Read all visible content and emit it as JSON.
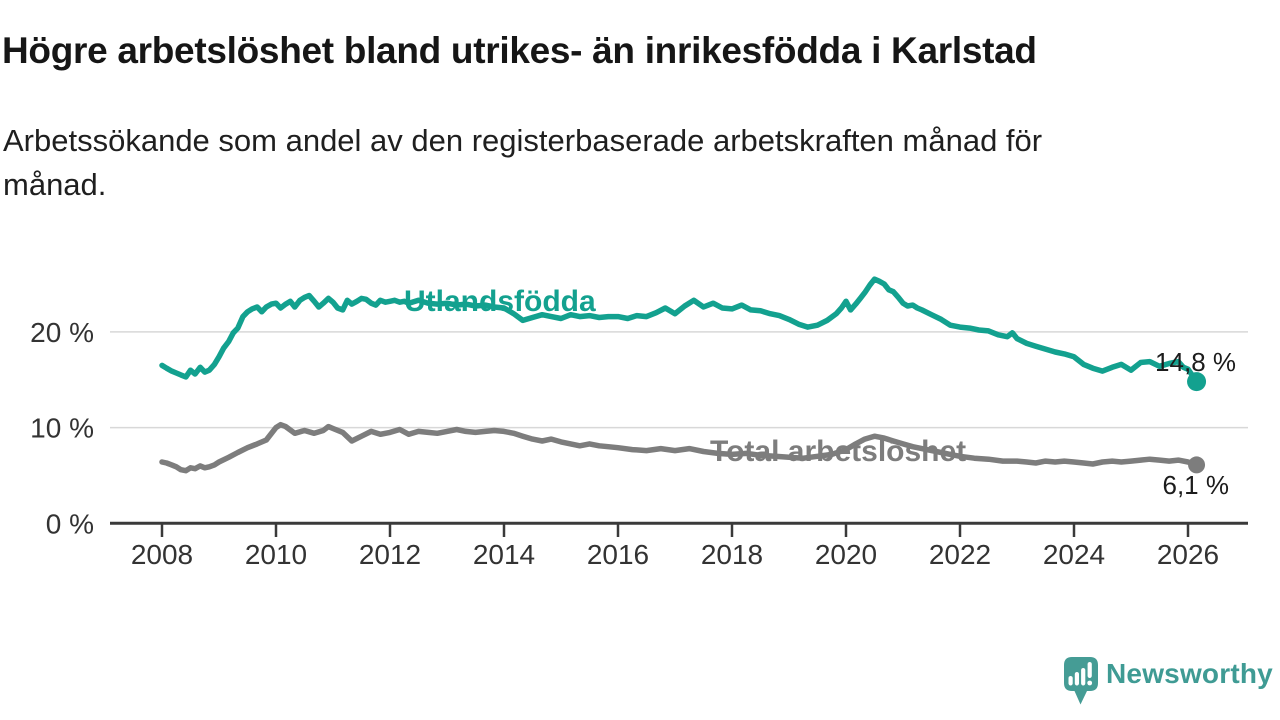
{
  "header": {
    "title": "Högre arbetslöshet bland utrikes- än inrikesfödda i Karlstad",
    "subtitle": "Arbetssökande som andel av den registerbaserade arbetskraften månad för månad."
  },
  "footer": {
    "brand": "Newsworthy"
  },
  "colors": {
    "foreign_born_line": "#13a18f",
    "total_line": "#7d7d7d",
    "axis": "#3a3a3a",
    "gridline": "#d8d8d8",
    "text_dark": "#1c1c1c",
    "brand_teal": "#3f9b94"
  },
  "chart_data": {
    "type": "line",
    "title": "Högre arbetslöshet bland utrikes- än inrikesfödda i Karlstad",
    "xlabel": "",
    "ylabel": "",
    "xlim": [
      2007.1,
      2027.1
    ],
    "ylim": [
      0,
      27
    ],
    "grid": "horizontal",
    "legend_position": "inline-labels",
    "x_axis": {
      "ticks": [
        2008,
        2010,
        2012,
        2014,
        2016,
        2018,
        2020,
        2022,
        2024,
        2026
      ]
    },
    "y_axis": {
      "ticks": [
        {
          "value": 0,
          "label": "0 %"
        },
        {
          "value": 10,
          "label": "10 %"
        },
        {
          "value": 20,
          "label": "20 %"
        }
      ]
    },
    "series": [
      {
        "id": "utlandsfodda",
        "label": "Utlandsfödda",
        "color": "#13a18f",
        "end_value": 14.8,
        "end_label": "14,8 %",
        "points": [
          [
            2008.0,
            16.5
          ],
          [
            2008.08,
            16.2
          ],
          [
            2008.17,
            15.9
          ],
          [
            2008.25,
            15.7
          ],
          [
            2008.33,
            15.5
          ],
          [
            2008.42,
            15.3
          ],
          [
            2008.5,
            16.0
          ],
          [
            2008.58,
            15.6
          ],
          [
            2008.67,
            16.3
          ],
          [
            2008.75,
            15.8
          ],
          [
            2008.83,
            16.0
          ],
          [
            2008.92,
            16.6
          ],
          [
            2009.0,
            17.4
          ],
          [
            2009.08,
            18.3
          ],
          [
            2009.17,
            19.0
          ],
          [
            2009.25,
            19.9
          ],
          [
            2009.33,
            20.4
          ],
          [
            2009.42,
            21.6
          ],
          [
            2009.5,
            22.1
          ],
          [
            2009.58,
            22.4
          ],
          [
            2009.67,
            22.6
          ],
          [
            2009.75,
            22.1
          ],
          [
            2009.83,
            22.6
          ],
          [
            2009.92,
            22.9
          ],
          [
            2010.0,
            23.0
          ],
          [
            2010.08,
            22.5
          ],
          [
            2010.17,
            22.9
          ],
          [
            2010.25,
            23.2
          ],
          [
            2010.33,
            22.6
          ],
          [
            2010.42,
            23.3
          ],
          [
            2010.5,
            23.6
          ],
          [
            2010.58,
            23.8
          ],
          [
            2010.67,
            23.2
          ],
          [
            2010.75,
            22.6
          ],
          [
            2010.83,
            23.0
          ],
          [
            2010.92,
            23.5
          ],
          [
            2011.0,
            23.1
          ],
          [
            2011.08,
            22.5
          ],
          [
            2011.17,
            22.3
          ],
          [
            2011.25,
            23.3
          ],
          [
            2011.33,
            22.9
          ],
          [
            2011.42,
            23.2
          ],
          [
            2011.5,
            23.5
          ],
          [
            2011.58,
            23.4
          ],
          [
            2011.67,
            23.0
          ],
          [
            2011.75,
            22.8
          ],
          [
            2011.83,
            23.3
          ],
          [
            2011.92,
            23.1
          ],
          [
            2012.0,
            23.2
          ],
          [
            2012.08,
            23.3
          ],
          [
            2012.17,
            23.1
          ],
          [
            2012.25,
            23.2
          ],
          [
            2012.33,
            23.0
          ],
          [
            2012.5,
            23.3
          ],
          [
            2012.67,
            23.0
          ],
          [
            2012.83,
            22.9
          ],
          [
            2013.0,
            23.0
          ],
          [
            2013.17,
            22.8
          ],
          [
            2013.33,
            22.9
          ],
          [
            2013.5,
            22.7
          ],
          [
            2013.67,
            22.8
          ],
          [
            2013.83,
            22.6
          ],
          [
            2014.0,
            22.5
          ],
          [
            2014.17,
            21.9
          ],
          [
            2014.33,
            21.2
          ],
          [
            2014.5,
            21.5
          ],
          [
            2014.67,
            21.8
          ],
          [
            2014.83,
            21.6
          ],
          [
            2015.0,
            21.4
          ],
          [
            2015.17,
            21.8
          ],
          [
            2015.33,
            21.6
          ],
          [
            2015.5,
            21.7
          ],
          [
            2015.67,
            21.5
          ],
          [
            2015.83,
            21.6
          ],
          [
            2016.0,
            21.6
          ],
          [
            2016.17,
            21.4
          ],
          [
            2016.33,
            21.7
          ],
          [
            2016.5,
            21.6
          ],
          [
            2016.67,
            22.0
          ],
          [
            2016.83,
            22.5
          ],
          [
            2017.0,
            21.9
          ],
          [
            2017.17,
            22.7
          ],
          [
            2017.33,
            23.3
          ],
          [
            2017.5,
            22.6
          ],
          [
            2017.67,
            23.0
          ],
          [
            2017.83,
            22.5
          ],
          [
            2018.0,
            22.4
          ],
          [
            2018.17,
            22.8
          ],
          [
            2018.33,
            22.3
          ],
          [
            2018.5,
            22.2
          ],
          [
            2018.67,
            21.9
          ],
          [
            2018.83,
            21.7
          ],
          [
            2019.0,
            21.3
          ],
          [
            2019.17,
            20.8
          ],
          [
            2019.33,
            20.5
          ],
          [
            2019.5,
            20.7
          ],
          [
            2019.67,
            21.2
          ],
          [
            2019.83,
            21.9
          ],
          [
            2019.92,
            22.5
          ],
          [
            2020.0,
            23.2
          ],
          [
            2020.08,
            22.3
          ],
          [
            2020.17,
            22.9
          ],
          [
            2020.25,
            23.5
          ],
          [
            2020.33,
            24.1
          ],
          [
            2020.42,
            24.9
          ],
          [
            2020.5,
            25.5
          ],
          [
            2020.58,
            25.3
          ],
          [
            2020.67,
            25.0
          ],
          [
            2020.75,
            24.4
          ],
          [
            2020.83,
            24.2
          ],
          [
            2020.92,
            23.6
          ],
          [
            2021.0,
            23.0
          ],
          [
            2021.08,
            22.7
          ],
          [
            2021.17,
            22.8
          ],
          [
            2021.25,
            22.5
          ],
          [
            2021.33,
            22.3
          ],
          [
            2021.5,
            21.8
          ],
          [
            2021.67,
            21.3
          ],
          [
            2021.83,
            20.7
          ],
          [
            2022.0,
            20.5
          ],
          [
            2022.17,
            20.4
          ],
          [
            2022.33,
            20.2
          ],
          [
            2022.5,
            20.1
          ],
          [
            2022.67,
            19.7
          ],
          [
            2022.83,
            19.5
          ],
          [
            2022.92,
            19.9
          ],
          [
            2023.0,
            19.3
          ],
          [
            2023.17,
            18.8
          ],
          [
            2023.33,
            18.5
          ],
          [
            2023.5,
            18.2
          ],
          [
            2023.67,
            17.9
          ],
          [
            2023.83,
            17.7
          ],
          [
            2024.0,
            17.4
          ],
          [
            2024.17,
            16.6
          ],
          [
            2024.33,
            16.2
          ],
          [
            2024.5,
            15.9
          ],
          [
            2024.67,
            16.3
          ],
          [
            2024.83,
            16.6
          ],
          [
            2025.0,
            16.0
          ],
          [
            2025.17,
            16.8
          ],
          [
            2025.33,
            16.9
          ],
          [
            2025.5,
            16.4
          ],
          [
            2025.67,
            16.7
          ],
          [
            2025.83,
            16.9
          ],
          [
            2025.92,
            16.3
          ],
          [
            2026.0,
            16.1
          ],
          [
            2026.15,
            14.8
          ]
        ]
      },
      {
        "id": "total-arbetsloshet",
        "label": "Total arbetslöshet",
        "color": "#7d7d7d",
        "end_value": 6.1,
        "end_label": "6,1 %",
        "points": [
          [
            2008.0,
            6.4
          ],
          [
            2008.08,
            6.3
          ],
          [
            2008.17,
            6.1
          ],
          [
            2008.25,
            5.9
          ],
          [
            2008.33,
            5.6
          ],
          [
            2008.42,
            5.5
          ],
          [
            2008.5,
            5.8
          ],
          [
            2008.58,
            5.7
          ],
          [
            2008.67,
            6.0
          ],
          [
            2008.75,
            5.8
          ],
          [
            2008.83,
            5.9
          ],
          [
            2008.92,
            6.1
          ],
          [
            2009.0,
            6.4
          ],
          [
            2009.17,
            6.9
          ],
          [
            2009.33,
            7.4
          ],
          [
            2009.5,
            7.9
          ],
          [
            2009.67,
            8.3
          ],
          [
            2009.83,
            8.7
          ],
          [
            2010.0,
            10.0
          ],
          [
            2010.08,
            10.3
          ],
          [
            2010.17,
            10.1
          ],
          [
            2010.33,
            9.4
          ],
          [
            2010.5,
            9.7
          ],
          [
            2010.67,
            9.4
          ],
          [
            2010.83,
            9.7
          ],
          [
            2010.92,
            10.1
          ],
          [
            2011.0,
            9.9
          ],
          [
            2011.17,
            9.5
          ],
          [
            2011.33,
            8.6
          ],
          [
            2011.5,
            9.1
          ],
          [
            2011.67,
            9.6
          ],
          [
            2011.83,
            9.3
          ],
          [
            2012.0,
            9.5
          ],
          [
            2012.17,
            9.8
          ],
          [
            2012.33,
            9.3
          ],
          [
            2012.5,
            9.6
          ],
          [
            2012.67,
            9.5
          ],
          [
            2012.83,
            9.4
          ],
          [
            2013.0,
            9.6
          ],
          [
            2013.17,
            9.8
          ],
          [
            2013.33,
            9.6
          ],
          [
            2013.5,
            9.5
          ],
          [
            2013.67,
            9.6
          ],
          [
            2013.83,
            9.7
          ],
          [
            2014.0,
            9.6
          ],
          [
            2014.17,
            9.4
          ],
          [
            2014.33,
            9.1
          ],
          [
            2014.5,
            8.8
          ],
          [
            2014.67,
            8.6
          ],
          [
            2014.83,
            8.8
          ],
          [
            2015.0,
            8.5
          ],
          [
            2015.17,
            8.3
          ],
          [
            2015.33,
            8.1
          ],
          [
            2015.5,
            8.3
          ],
          [
            2015.67,
            8.1
          ],
          [
            2015.83,
            8.0
          ],
          [
            2016.0,
            7.9
          ],
          [
            2016.25,
            7.7
          ],
          [
            2016.5,
            7.6
          ],
          [
            2016.75,
            7.8
          ],
          [
            2017.0,
            7.6
          ],
          [
            2017.25,
            7.8
          ],
          [
            2017.5,
            7.5
          ],
          [
            2017.75,
            7.3
          ],
          [
            2018.0,
            7.2
          ],
          [
            2018.25,
            7.3
          ],
          [
            2018.5,
            7.1
          ],
          [
            2018.75,
            7.0
          ],
          [
            2019.0,
            6.9
          ],
          [
            2019.25,
            6.8
          ],
          [
            2019.5,
            7.0
          ],
          [
            2019.75,
            7.2
          ],
          [
            2020.0,
            7.7
          ],
          [
            2020.17,
            8.3
          ],
          [
            2020.33,
            8.8
          ],
          [
            2020.5,
            9.1
          ],
          [
            2020.67,
            8.9
          ],
          [
            2020.83,
            8.6
          ],
          [
            2021.0,
            8.3
          ],
          [
            2021.17,
            8.0
          ],
          [
            2021.33,
            7.8
          ],
          [
            2021.5,
            7.6
          ],
          [
            2021.67,
            7.4
          ],
          [
            2021.83,
            7.2
          ],
          [
            2022.0,
            7.0
          ],
          [
            2022.25,
            6.8
          ],
          [
            2022.5,
            6.7
          ],
          [
            2022.75,
            6.5
          ],
          [
            2023.0,
            6.5
          ],
          [
            2023.17,
            6.4
          ],
          [
            2023.33,
            6.3
          ],
          [
            2023.5,
            6.5
          ],
          [
            2023.67,
            6.4
          ],
          [
            2023.83,
            6.5
          ],
          [
            2024.0,
            6.4
          ],
          [
            2024.17,
            6.3
          ],
          [
            2024.33,
            6.2
          ],
          [
            2024.5,
            6.4
          ],
          [
            2024.67,
            6.5
          ],
          [
            2024.83,
            6.4
          ],
          [
            2025.0,
            6.5
          ],
          [
            2025.17,
            6.6
          ],
          [
            2025.33,
            6.7
          ],
          [
            2025.5,
            6.6
          ],
          [
            2025.67,
            6.5
          ],
          [
            2025.83,
            6.6
          ],
          [
            2026.0,
            6.4
          ],
          [
            2026.15,
            6.1
          ]
        ]
      }
    ]
  }
}
